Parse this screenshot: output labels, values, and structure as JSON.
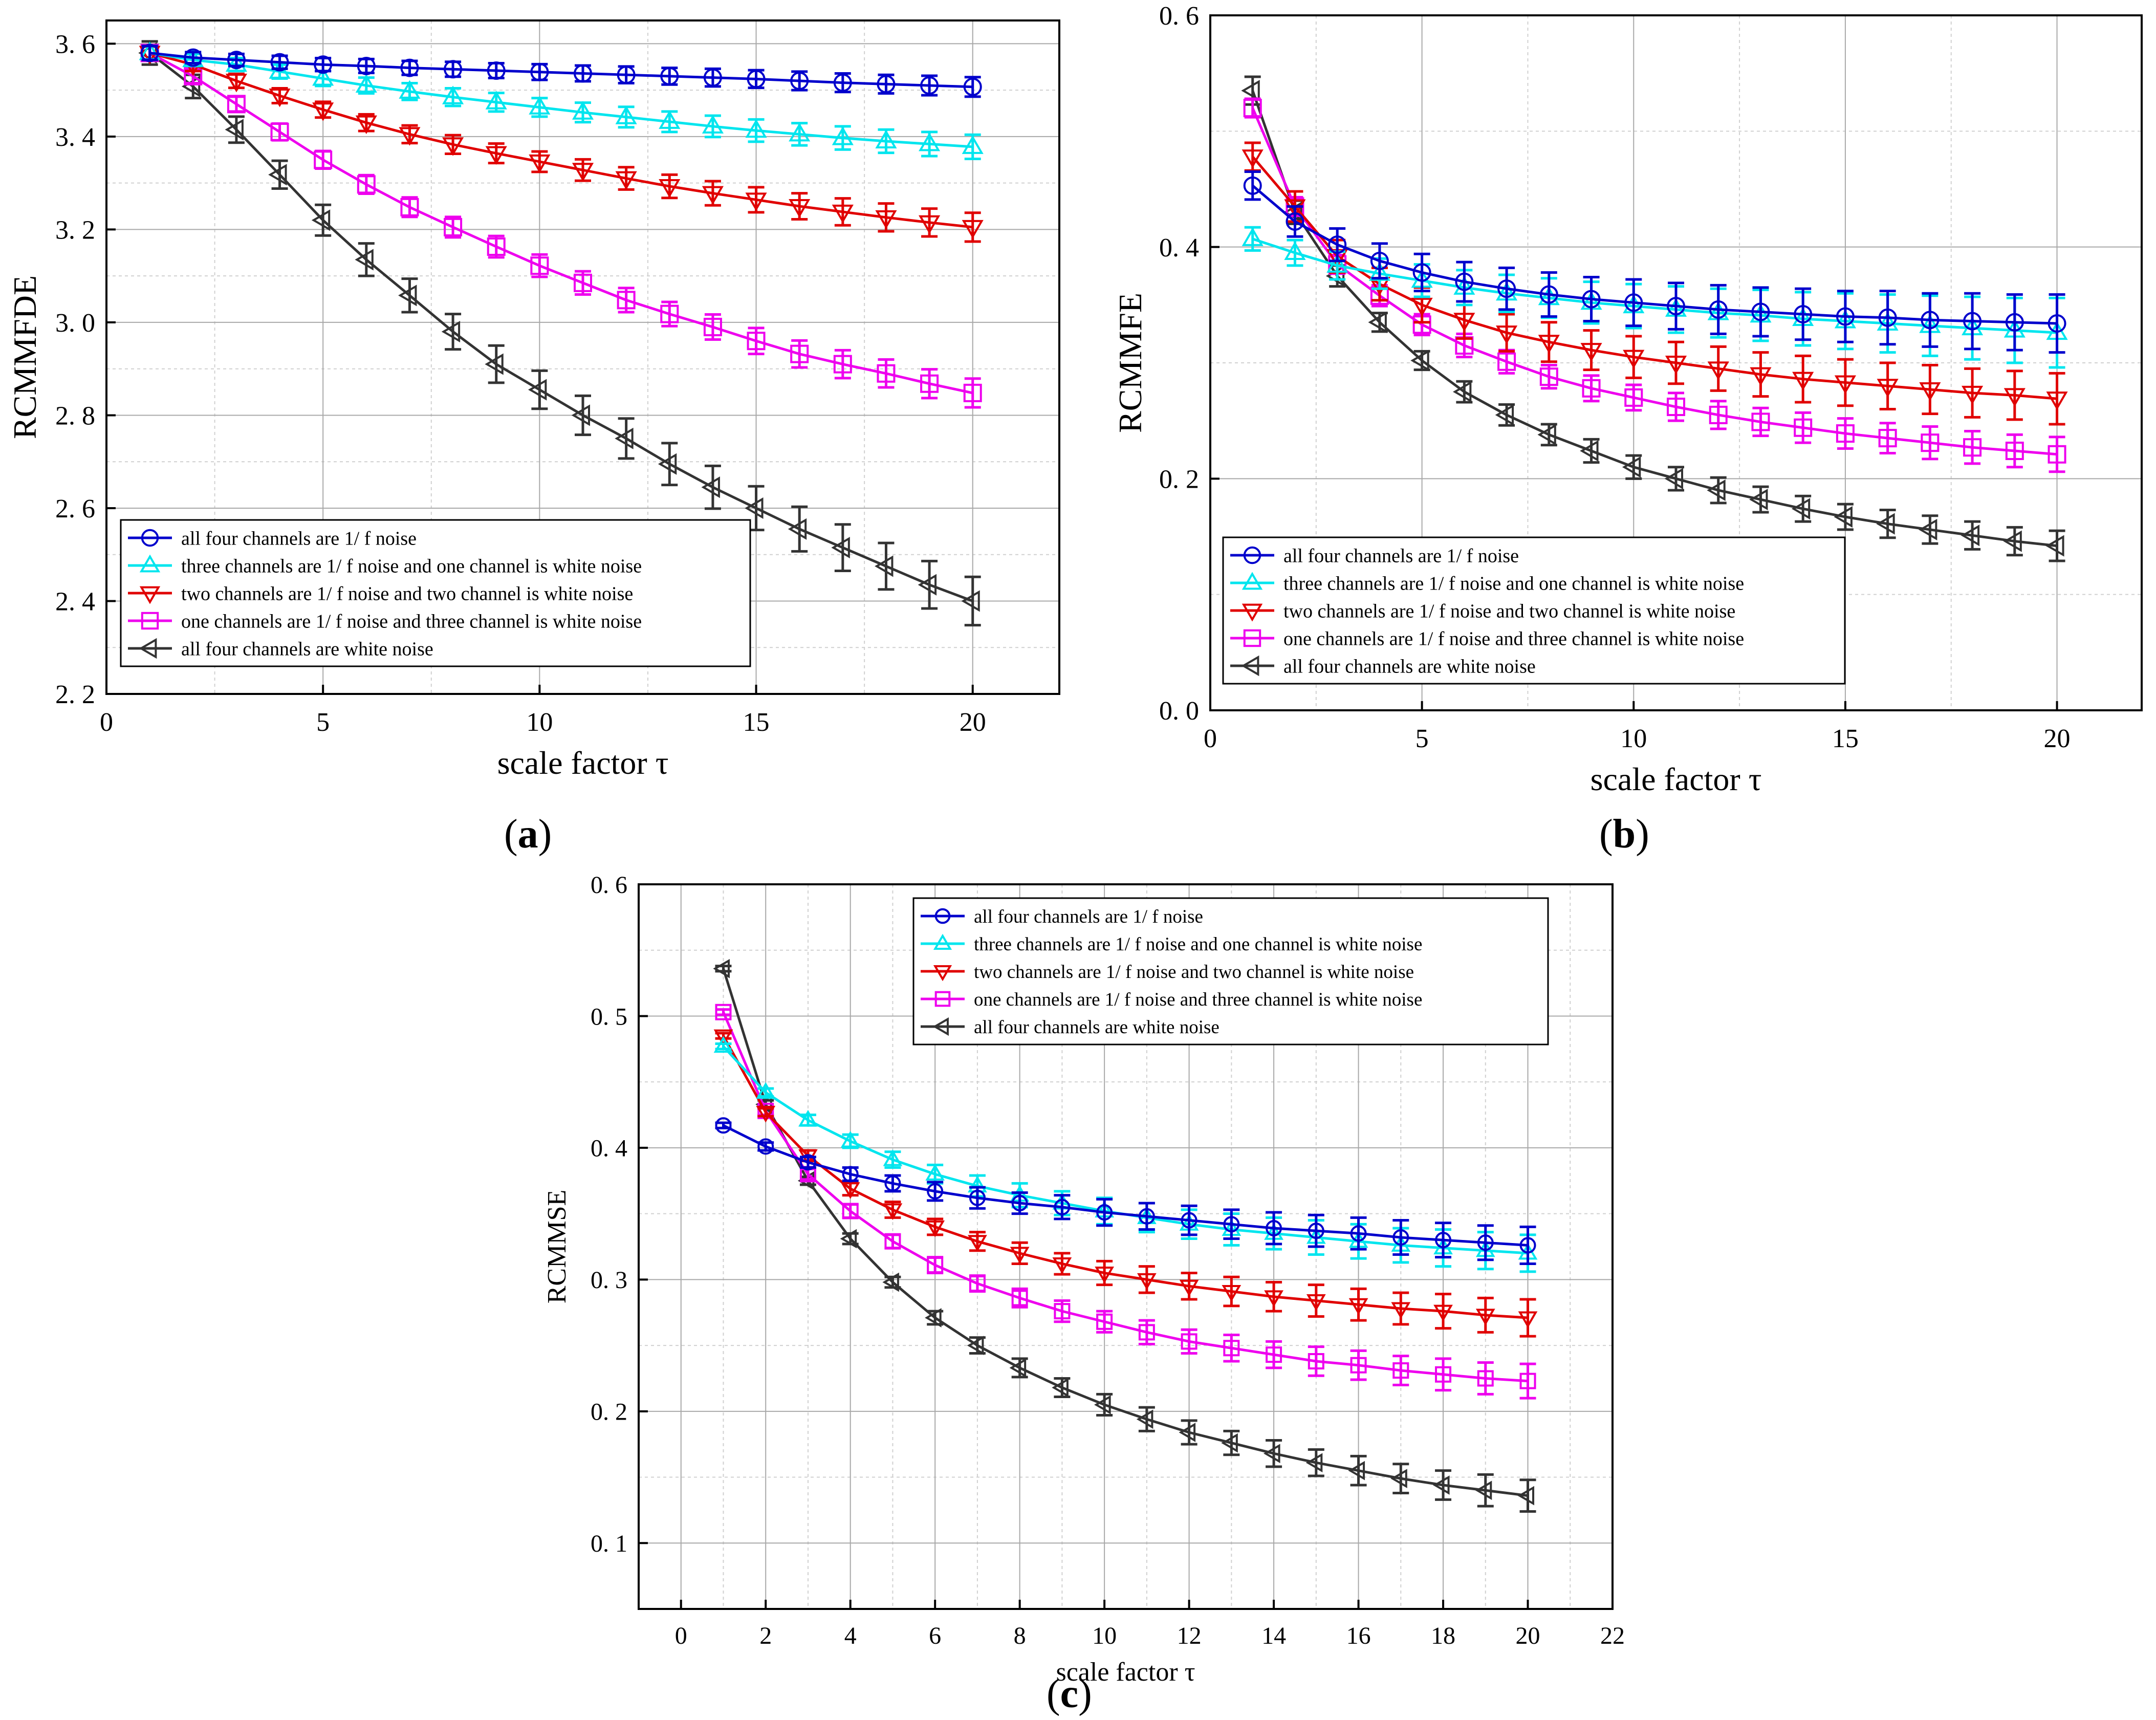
{
  "figure": {
    "panels": [
      {
        "label_open": "(",
        "label_letter": "a",
        "label_close": ")"
      },
      {
        "label_open": "(",
        "label_letter": "b",
        "label_close": ")"
      },
      {
        "label_open": "(",
        "label_letter": "c",
        "label_close": ")"
      }
    ]
  },
  "legend_text": {
    "s1": "all four channels are 1/ f noise",
    "s2": "three channels are 1/ f noise and one channel is white noise",
    "s3": "two channels are 1/ f noise and two channel is white noise",
    "s4": "one channels are 1/ f noise and three channel is white noise",
    "s5": "all four channels are white noise"
  },
  "series_colors": [
    "#0000cc",
    "#00e5ee",
    "#e00000",
    "#ee00ee",
    "#333333"
  ],
  "series_markers": [
    "circle",
    "triangle-up",
    "triangle-down",
    "square",
    "triangle-left"
  ],
  "chart_data": [
    {
      "type": "line",
      "xlabel": "scale factor τ",
      "ylabel": "RCMMFDE",
      "xlim": [
        0,
        22
      ],
      "ylim": [
        2.2,
        3.65
      ],
      "xticks": [
        0,
        5,
        10,
        15,
        20
      ],
      "yticks": [
        2.2,
        2.4,
        2.6,
        2.8,
        3.0,
        3.2,
        3.4,
        3.6
      ],
      "ytick_labels": [
        "2. 2",
        "2. 4",
        "2. 6",
        "2. 8",
        "3. 0",
        "3. 2",
        "3. 4",
        "3. 6"
      ],
      "grid": true,
      "legend_position": "bottom-left",
      "x": [
        1,
        2,
        3,
        4,
        5,
        6,
        7,
        8,
        9,
        10,
        11,
        12,
        13,
        14,
        15,
        16,
        17,
        18,
        19,
        20
      ],
      "series": [
        {
          "name": "all four channels are 1/ f noise",
          "values": [
            3.58,
            3.57,
            3.565,
            3.56,
            3.555,
            3.552,
            3.548,
            3.545,
            3.542,
            3.539,
            3.536,
            3.533,
            3.53,
            3.527,
            3.524,
            3.52,
            3.516,
            3.513,
            3.51,
            3.507
          ],
          "error": [
            0.015,
            0.012,
            0.013,
            0.014,
            0.014,
            0.015,
            0.015,
            0.016,
            0.016,
            0.017,
            0.017,
            0.018,
            0.018,
            0.019,
            0.019,
            0.02,
            0.02,
            0.02,
            0.021,
            0.021
          ]
        },
        {
          "name": "three channels are 1/ f noise and one channel is white noise",
          "values": [
            3.58,
            3.565,
            3.555,
            3.54,
            3.525,
            3.51,
            3.497,
            3.485,
            3.474,
            3.463,
            3.452,
            3.442,
            3.432,
            3.422,
            3.413,
            3.405,
            3.397,
            3.39,
            3.384,
            3.378
          ],
          "error": [
            0.015,
            0.013,
            0.014,
            0.015,
            0.016,
            0.017,
            0.018,
            0.019,
            0.02,
            0.02,
            0.021,
            0.022,
            0.022,
            0.023,
            0.024,
            0.024,
            0.025,
            0.025,
            0.026,
            0.026
          ]
        },
        {
          "name": "two channels are 1/ f noise and two channel is white noise",
          "values": [
            3.58,
            3.555,
            3.52,
            3.488,
            3.458,
            3.43,
            3.405,
            3.383,
            3.364,
            3.346,
            3.328,
            3.31,
            3.293,
            3.278,
            3.264,
            3.25,
            3.238,
            3.226,
            3.215,
            3.205
          ],
          "error": [
            0.015,
            0.014,
            0.015,
            0.016,
            0.017,
            0.018,
            0.019,
            0.02,
            0.021,
            0.022,
            0.023,
            0.024,
            0.025,
            0.026,
            0.027,
            0.028,
            0.029,
            0.03,
            0.03,
            0.031
          ]
        },
        {
          "name": "one channels are 1/ f noise and three channel is white noise",
          "values": [
            3.58,
            3.53,
            3.47,
            3.41,
            3.35,
            3.297,
            3.248,
            3.205,
            3.163,
            3.122,
            3.085,
            3.048,
            3.018,
            2.99,
            2.96,
            2.932,
            2.91,
            2.89,
            2.868,
            2.848
          ],
          "error": [
            0.015,
            0.015,
            0.016,
            0.018,
            0.019,
            0.02,
            0.021,
            0.022,
            0.023,
            0.024,
            0.025,
            0.026,
            0.026,
            0.027,
            0.028,
            0.029,
            0.03,
            0.03,
            0.031,
            0.031
          ]
        },
        {
          "name": "all four channels are white noise",
          "values": [
            3.58,
            3.508,
            3.415,
            3.318,
            3.22,
            3.135,
            3.058,
            2.98,
            2.91,
            2.855,
            2.8,
            2.75,
            2.695,
            2.645,
            2.6,
            2.555,
            2.515,
            2.475,
            2.435,
            2.4
          ],
          "error": [
            0.025,
            0.025,
            0.028,
            0.03,
            0.033,
            0.035,
            0.036,
            0.038,
            0.04,
            0.041,
            0.042,
            0.043,
            0.045,
            0.046,
            0.047,
            0.048,
            0.05,
            0.05,
            0.051,
            0.052
          ]
        }
      ]
    },
    {
      "type": "line",
      "xlabel": "scale factor τ",
      "ylabel": "RCMMFE",
      "xlim": [
        0,
        22
      ],
      "ylim": [
        0.0,
        0.6
      ],
      "xticks": [
        0,
        5,
        10,
        15,
        20
      ],
      "yticks": [
        0.0,
        0.2,
        0.4,
        0.6
      ],
      "ytick_labels": [
        "0. 0",
        "0. 2",
        "0. 4",
        "0. 6"
      ],
      "grid": true,
      "legend_position": "bottom-left",
      "x": [
        1,
        2,
        3,
        4,
        5,
        6,
        7,
        8,
        9,
        10,
        11,
        12,
        13,
        14,
        15,
        16,
        17,
        18,
        19,
        20
      ],
      "series": [
        {
          "name": "all four channels are 1/ f noise",
          "values": [
            0.453,
            0.422,
            0.402,
            0.388,
            0.378,
            0.37,
            0.364,
            0.359,
            0.355,
            0.352,
            0.349,
            0.346,
            0.344,
            0.342,
            0.34,
            0.339,
            0.337,
            0.336,
            0.335,
            0.334
          ],
          "error": [
            0.012,
            0.013,
            0.014,
            0.015,
            0.016,
            0.017,
            0.018,
            0.019,
            0.019,
            0.02,
            0.02,
            0.021,
            0.021,
            0.022,
            0.022,
            0.023,
            0.023,
            0.024,
            0.024,
            0.025
          ]
        },
        {
          "name": "three channels are 1/ f noise and one channel is white noise",
          "values": [
            0.407,
            0.395,
            0.384,
            0.377,
            0.371,
            0.365,
            0.36,
            0.356,
            0.352,
            0.349,
            0.346,
            0.343,
            0.341,
            0.338,
            0.336,
            0.334,
            0.332,
            0.33,
            0.328,
            0.326
          ],
          "error": [
            0.01,
            0.011,
            0.012,
            0.013,
            0.014,
            0.015,
            0.016,
            0.017,
            0.018,
            0.019,
            0.02,
            0.021,
            0.022,
            0.023,
            0.024,
            0.025,
            0.026,
            0.027,
            0.028,
            0.03
          ]
        },
        {
          "name": "two channels are 1/ f noise and two channel is white noise",
          "values": [
            0.478,
            0.435,
            0.392,
            0.368,
            0.35,
            0.337,
            0.326,
            0.318,
            0.311,
            0.305,
            0.3,
            0.295,
            0.29,
            0.286,
            0.283,
            0.28,
            0.277,
            0.274,
            0.272,
            0.269
          ],
          "error": [
            0.012,
            0.013,
            0.014,
            0.014,
            0.015,
            0.016,
            0.016,
            0.017,
            0.017,
            0.018,
            0.018,
            0.019,
            0.019,
            0.02,
            0.02,
            0.02,
            0.021,
            0.021,
            0.021,
            0.022
          ]
        },
        {
          "name": "one channels are 1/ f noise and three channel is white noise",
          "values": [
            0.52,
            0.435,
            0.385,
            0.358,
            0.333,
            0.315,
            0.301,
            0.288,
            0.278,
            0.27,
            0.262,
            0.255,
            0.249,
            0.244,
            0.239,
            0.235,
            0.231,
            0.227,
            0.224,
            0.221
          ],
          "error": [
            0.008,
            0.008,
            0.008,
            0.009,
            0.009,
            0.01,
            0.01,
            0.01,
            0.011,
            0.011,
            0.012,
            0.012,
            0.012,
            0.013,
            0.013,
            0.013,
            0.014,
            0.014,
            0.014,
            0.015
          ]
        },
        {
          "name": "all four channels are white noise",
          "values": [
            0.535,
            0.43,
            0.375,
            0.335,
            0.302,
            0.275,
            0.255,
            0.238,
            0.224,
            0.21,
            0.2,
            0.19,
            0.182,
            0.174,
            0.167,
            0.161,
            0.156,
            0.151,
            0.146,
            0.142
          ],
          "error": [
            0.012,
            0.01,
            0.009,
            0.008,
            0.008,
            0.009,
            0.009,
            0.009,
            0.01,
            0.01,
            0.01,
            0.011,
            0.011,
            0.011,
            0.011,
            0.012,
            0.012,
            0.012,
            0.012,
            0.013
          ]
        }
      ]
    },
    {
      "type": "line",
      "xlabel": "scale factor τ",
      "ylabel": "RCMMSE",
      "xlim": [
        -1,
        22
      ],
      "ylim": [
        0.05,
        0.6
      ],
      "xticks": [
        0,
        2,
        4,
        6,
        8,
        10,
        12,
        14,
        16,
        18,
        20,
        22
      ],
      "yticks": [
        0.1,
        0.2,
        0.3,
        0.4,
        0.5,
        0.6
      ],
      "ytick_labels": [
        "0. 1",
        "0. 2",
        "0. 3",
        "0. 4",
        "0. 5",
        "0. 6"
      ],
      "grid": true,
      "legend_position": "top-right",
      "x": [
        1,
        2,
        3,
        4,
        5,
        6,
        7,
        8,
        9,
        10,
        11,
        12,
        13,
        14,
        15,
        16,
        17,
        18,
        19,
        20
      ],
      "series": [
        {
          "name": "all four channels are 1/ f noise",
          "values": [
            0.417,
            0.401,
            0.389,
            0.38,
            0.373,
            0.367,
            0.362,
            0.358,
            0.355,
            0.351,
            0.348,
            0.345,
            0.342,
            0.339,
            0.337,
            0.335,
            0.332,
            0.33,
            0.328,
            0.326
          ],
          "error": [
            0.002,
            0.003,
            0.004,
            0.005,
            0.006,
            0.007,
            0.008,
            0.008,
            0.009,
            0.01,
            0.01,
            0.011,
            0.011,
            0.012,
            0.012,
            0.012,
            0.013,
            0.013,
            0.013,
            0.014
          ]
        },
        {
          "name": "three channels are 1/ f noise and one channel is white noise",
          "values": [
            0.477,
            0.442,
            0.421,
            0.405,
            0.391,
            0.38,
            0.371,
            0.364,
            0.358,
            0.352,
            0.347,
            0.342,
            0.338,
            0.335,
            0.332,
            0.329,
            0.326,
            0.324,
            0.322,
            0.32
          ],
          "error": [
            0.002,
            0.003,
            0.004,
            0.005,
            0.006,
            0.007,
            0.008,
            0.009,
            0.009,
            0.01,
            0.011,
            0.011,
            0.012,
            0.012,
            0.013,
            0.013,
            0.013,
            0.014,
            0.014,
            0.014
          ]
        },
        {
          "name": "two channels are 1/ f noise and two channel is white noise",
          "values": [
            0.485,
            0.427,
            0.394,
            0.369,
            0.353,
            0.34,
            0.329,
            0.32,
            0.312,
            0.305,
            0.3,
            0.295,
            0.291,
            0.287,
            0.284,
            0.281,
            0.278,
            0.276,
            0.273,
            0.271
          ],
          "error": [
            0.002,
            0.003,
            0.004,
            0.005,
            0.006,
            0.006,
            0.007,
            0.008,
            0.008,
            0.009,
            0.01,
            0.01,
            0.011,
            0.011,
            0.012,
            0.012,
            0.012,
            0.013,
            0.013,
            0.014
          ]
        },
        {
          "name": "one channels are 1/ f noise and three channel is white noise",
          "values": [
            0.503,
            0.428,
            0.38,
            0.352,
            0.329,
            0.311,
            0.297,
            0.286,
            0.276,
            0.268,
            0.26,
            0.253,
            0.248,
            0.243,
            0.238,
            0.235,
            0.231,
            0.228,
            0.225,
            0.223
          ],
          "error": [
            0.002,
            0.003,
            0.004,
            0.005,
            0.005,
            0.006,
            0.006,
            0.007,
            0.008,
            0.008,
            0.009,
            0.009,
            0.01,
            0.01,
            0.011,
            0.011,
            0.011,
            0.012,
            0.012,
            0.013
          ]
        },
        {
          "name": "all four channels are white noise",
          "values": [
            0.536,
            0.433,
            0.375,
            0.331,
            0.298,
            0.271,
            0.25,
            0.233,
            0.218,
            0.205,
            0.194,
            0.184,
            0.176,
            0.168,
            0.161,
            0.155,
            0.149,
            0.144,
            0.14,
            0.136
          ],
          "error": [
            0.002,
            0.003,
            0.003,
            0.004,
            0.004,
            0.005,
            0.006,
            0.007,
            0.007,
            0.008,
            0.009,
            0.009,
            0.009,
            0.01,
            0.01,
            0.011,
            0.011,
            0.011,
            0.012,
            0.012
          ]
        }
      ]
    }
  ]
}
